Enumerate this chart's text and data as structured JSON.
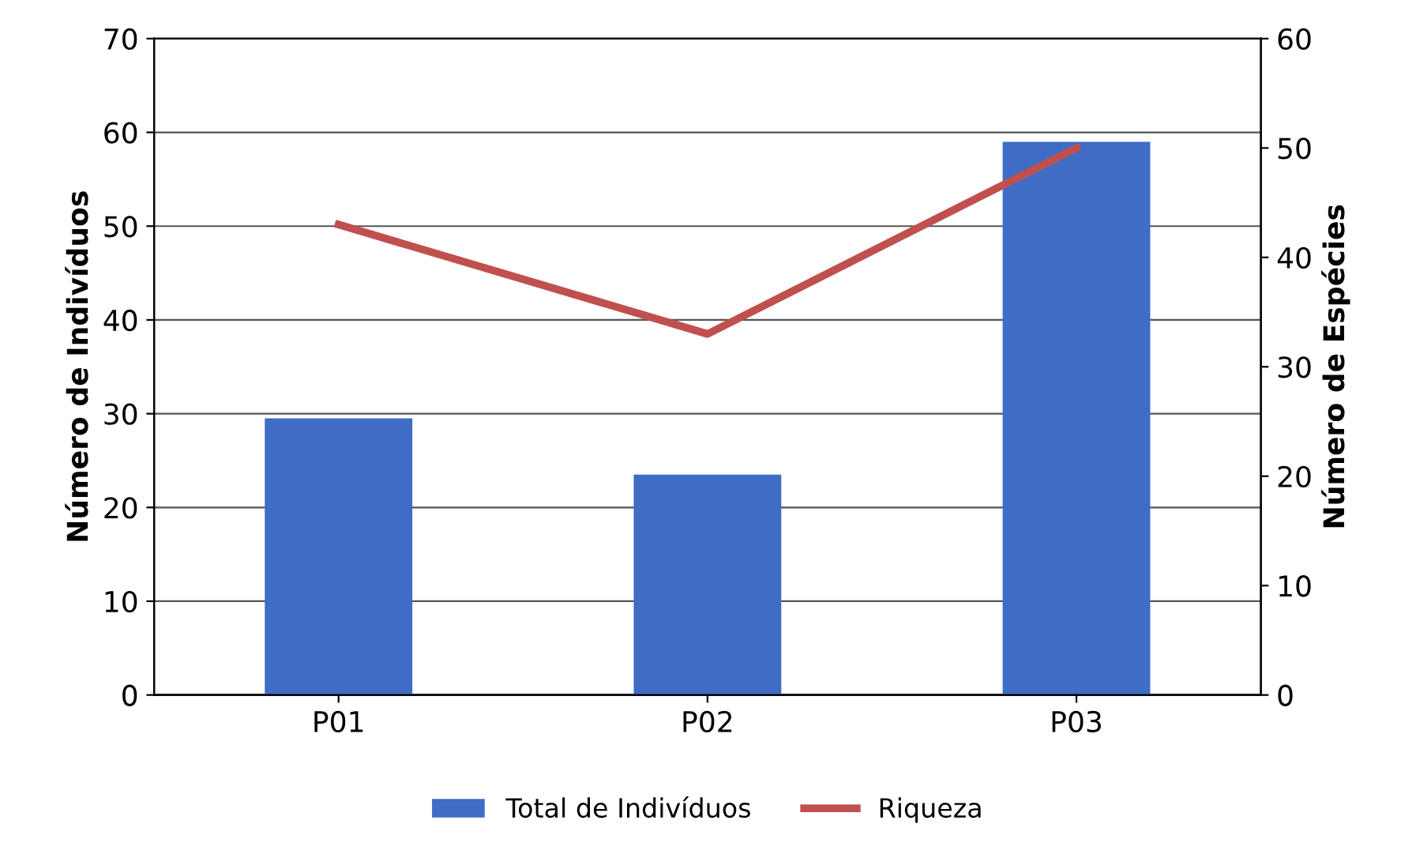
{
  "chart_data": {
    "type": "bar",
    "categories": [
      "P01",
      "P02",
      "P03"
    ],
    "series": [
      {
        "name": "Total de Indivíduos",
        "color": "#3f6cc4",
        "values": [
          29.5,
          23.5,
          59
        ]
      },
      {
        "name": "Riqueza",
        "type": "line",
        "axis": "y2",
        "color": "#c0504d",
        "values": [
          43,
          33,
          50
        ]
      }
    ],
    "ylabel": "Número de Indivíduos",
    "y2label": "Número de Espécies",
    "ylim": [
      0,
      70
    ],
    "yticks": [
      0,
      10,
      20,
      30,
      40,
      50,
      60,
      70
    ],
    "y2lim": [
      0,
      60
    ],
    "y2ticks": [
      0,
      10,
      20,
      30,
      40,
      50,
      60
    ],
    "grid": "y",
    "legend": "bottom",
    "marker": "none"
  }
}
